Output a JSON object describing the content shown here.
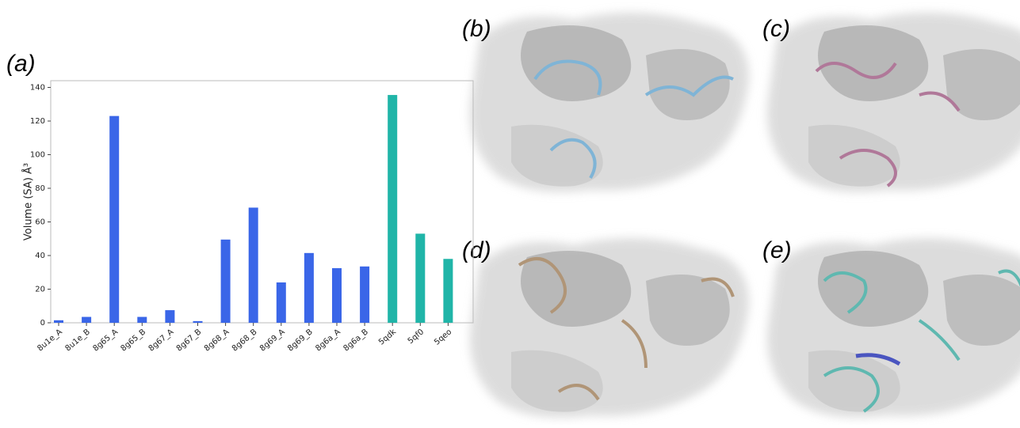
{
  "chart_data": {
    "type": "bar",
    "y_label": "Volume (SA) Å³",
    "categories": [
      "8u1e_A",
      "8u1e_B",
      "8g65_A",
      "8g65_B",
      "8g67_A",
      "8g67_B",
      "8g68_A",
      "8g68_B",
      "8g69_A",
      "8g69_B",
      "8g6a_A",
      "8g6a_B",
      "5qdk",
      "5qf0",
      "5qeo"
    ],
    "values": [
      1.5,
      3.5,
      123,
      3.5,
      7.5,
      1,
      49.5,
      68.5,
      24,
      41.5,
      32.5,
      33.5,
      135.5,
      53,
      38
    ],
    "colors": [
      "#3a66e8",
      "#3a66e8",
      "#3a66e8",
      "#3a66e8",
      "#3a66e8",
      "#3a66e8",
      "#3a66e8",
      "#3a66e8",
      "#3a66e8",
      "#3a66e8",
      "#3a66e8",
      "#3a66e8",
      "#20b5a8",
      "#20b5a8",
      "#20b5a8"
    ],
    "ylim": [
      0,
      144
    ],
    "yticks": [
      0,
      20,
      40,
      60,
      80,
      100,
      120,
      140
    ],
    "grid": false
  },
  "panel_labels": [
    "(a)",
    "(b)",
    "(c)",
    "(d)",
    "(e)"
  ]
}
